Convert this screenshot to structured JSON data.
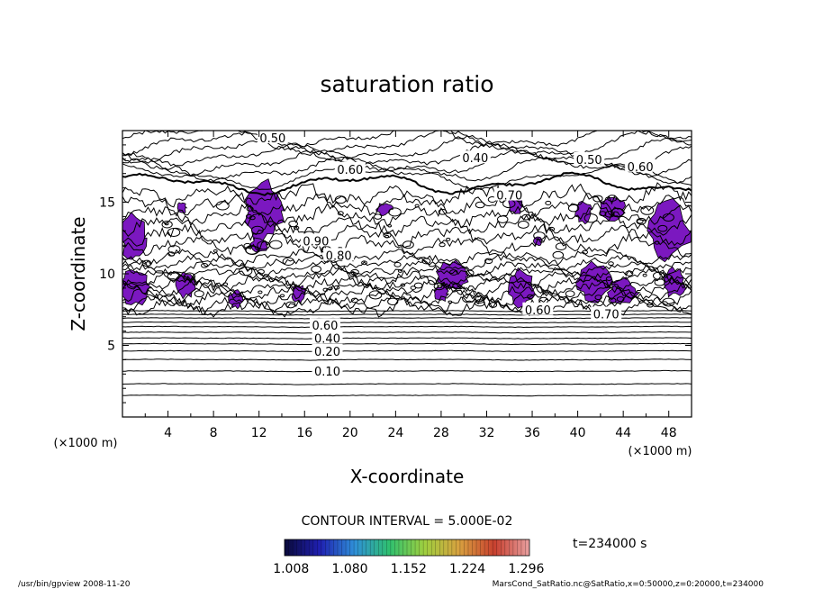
{
  "chart_data": {
    "type": "contour",
    "title": "saturation ratio",
    "xlabel": "X-coordinate",
    "ylabel": "Z-coordinate",
    "x_unit": "(×1000 m)",
    "z_unit": "(×1000 m)",
    "xlim": [
      0,
      50
    ],
    "ylim": [
      0,
      20
    ],
    "x_ticks": [
      "4",
      "8",
      "12",
      "16",
      "20",
      "24",
      "28",
      "32",
      "36",
      "40",
      "44",
      "48"
    ],
    "y_ticks": [
      "5",
      "10",
      "15"
    ],
    "contour_interval_text": "CONTOUR INTERVAL = 5.000E-02",
    "contour_labels": [
      {
        "text": "0.10",
        "x": 18.0,
        "z": 3.2
      },
      {
        "text": "0.20",
        "x": 18.0,
        "z": 4.6
      },
      {
        "text": "0.40",
        "x": 18.0,
        "z": 5.5
      },
      {
        "text": "0.60",
        "x": 17.8,
        "z": 6.4
      },
      {
        "text": "0.50",
        "x": 13.2,
        "z": 19.5
      },
      {
        "text": "0.60",
        "x": 20.0,
        "z": 17.3
      },
      {
        "text": "0.40",
        "x": 31.0,
        "z": 18.1
      },
      {
        "text": "0.50",
        "x": 41.0,
        "z": 18.0
      },
      {
        "text": "0.60",
        "x": 45.5,
        "z": 17.5
      },
      {
        "text": "0.70",
        "x": 34.0,
        "z": 15.5
      },
      {
        "text": "0.90",
        "x": 17.0,
        "z": 12.3
      },
      {
        "text": "0.80",
        "x": 19.0,
        "z": 11.3
      },
      {
        "text": "0.60",
        "x": 36.5,
        "z": 7.5
      },
      {
        "text": "0.70",
        "x": 42.5,
        "z": 7.2
      }
    ],
    "filled_levels_min": 1.0,
    "colorbar": {
      "tick_labels": [
        "1.008",
        "1.080",
        "1.152",
        "1.224",
        "1.296"
      ],
      "range": [
        1.0,
        1.3
      ],
      "colors": [
        "#0a0a3a",
        "#1f1fb0",
        "#2f8fd8",
        "#2fc06f",
        "#9fcf3f",
        "#d8a03f",
        "#c8402f",
        "#e8a0a0"
      ]
    },
    "supersaturated_fill_color": "#7b18c0",
    "time_label": "t=234000 s"
  },
  "footer": {
    "left": "/usr/bin/gpview  2008-11-20",
    "right": "MarsCond_SatRatio.nc@SatRatio,x=0:50000,z=0:20000,t=234000"
  }
}
